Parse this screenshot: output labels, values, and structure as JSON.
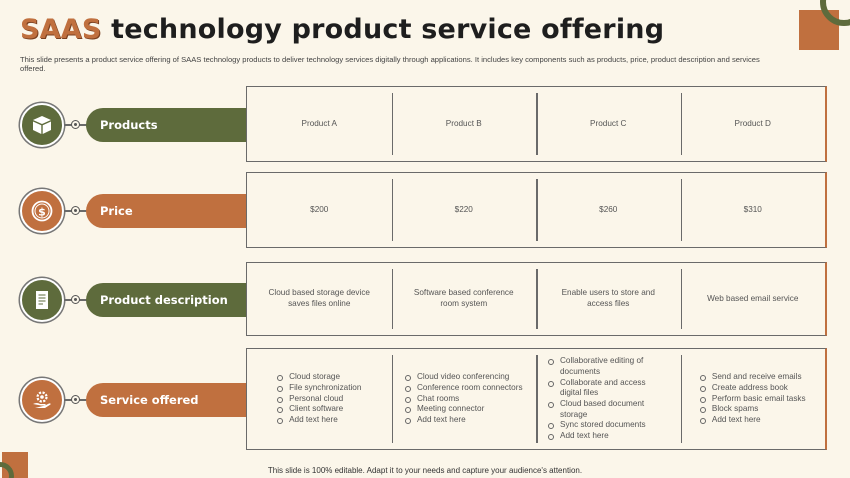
{
  "slide": {
    "title_accent": "SAAS",
    "title_rest": " technology product service offering",
    "subtitle": "This slide presents a product service offering of SAAS technology products to deliver technology services digitally through applications. It includes key components such as products, price, product description and services offered.",
    "footer": "This slide is 100% editable. Adapt it to your needs and capture your audience's attention."
  },
  "colors": {
    "accent_orange": "#C0703F",
    "accent_green": "#5E6B3C",
    "background": "#FBF6EA"
  },
  "rows": [
    {
      "label": "Products",
      "icon": "box-icon",
      "cells": [
        "Product A",
        "Product B",
        "Product C",
        "Product D"
      ]
    },
    {
      "label": "Price",
      "icon": "dollar-coin-icon",
      "cells": [
        "$200",
        "$220",
        "$260",
        "$310"
      ]
    },
    {
      "label": "Product description",
      "icon": "document-icon",
      "cells": [
        "Cloud based storage device saves files online",
        "Software based conference room system",
        "Enable users to store and access files",
        "Web based email service"
      ]
    },
    {
      "label": "Service offered",
      "icon": "hand-gear-icon",
      "lists": [
        [
          "Cloud storage",
          "File synchronization",
          "Personal cloud",
          "Client software",
          "Add text here"
        ],
        [
          "Cloud video conferencing",
          "Conference room connectors",
          "Chat rooms",
          "Meeting connector",
          "Add text here"
        ],
        [
          "Collaborative editing of documents",
          "Collaborate and access digital files",
          "Cloud based document storage",
          "Sync stored documents",
          "Add text here"
        ],
        [
          "Send and receive emails",
          "Create address book",
          "Perform basic email tasks",
          "Block spams",
          "Add text here"
        ]
      ]
    }
  ]
}
